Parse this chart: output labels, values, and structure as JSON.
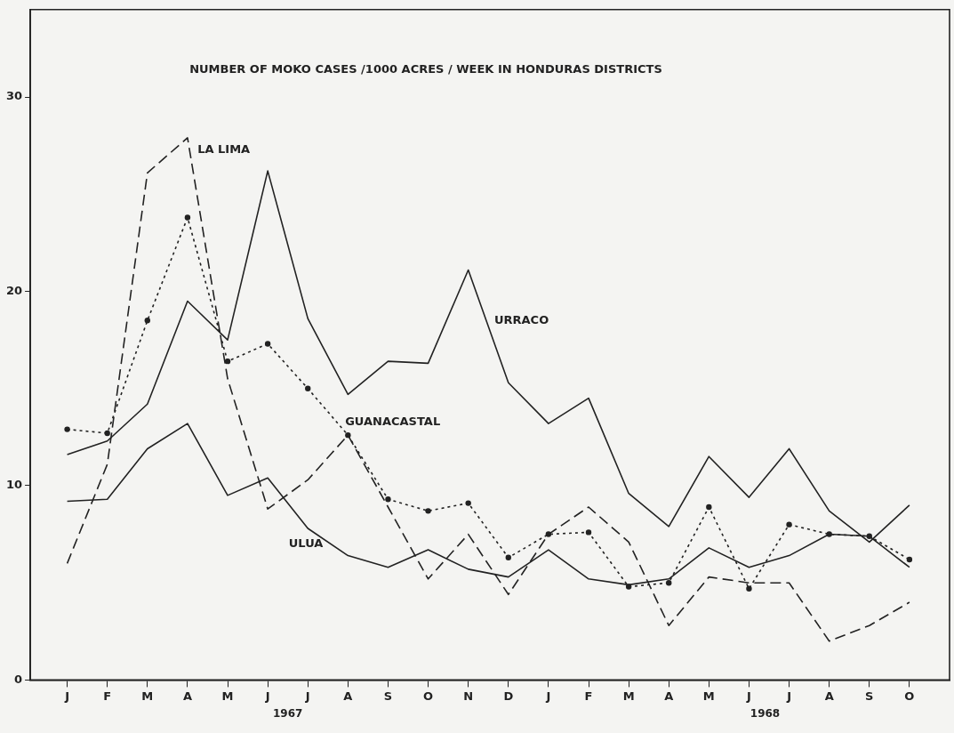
{
  "chart_data": {
    "type": "line",
    "title": "NUMBER OF MOKO CASES /1000 ACRES / WEEK IN HONDURAS DISTRICTS",
    "categories": [
      "J",
      "F",
      "M",
      "A",
      "M",
      "J",
      "J",
      "A",
      "S",
      "O",
      "N",
      "D",
      "J",
      "F",
      "M",
      "A",
      "M",
      "J",
      "J",
      "A",
      "S",
      "O"
    ],
    "ylim": [
      0,
      34.5
    ],
    "yticks": [
      0,
      10,
      20,
      30
    ],
    "grid": false,
    "legend": false,
    "series": [
      {
        "name": "LA LIMA",
        "color": "#222222",
        "line_style": "dashed",
        "marker": "none",
        "values": [
          6.0,
          11.1,
          26.1,
          27.9,
          15.5,
          8.8,
          10.3,
          12.6,
          8.9,
          5.2,
          7.5,
          4.4,
          7.5,
          8.9,
          7.1,
          2.8,
          5.3,
          5.0,
          5.0,
          2.0,
          2.8,
          4.0
        ]
      },
      {
        "name": "URRACO",
        "color": "#222222",
        "line_style": "solid",
        "marker": "none",
        "values": [
          11.6,
          12.3,
          14.2,
          19.5,
          17.5,
          26.2,
          18.6,
          14.7,
          16.4,
          16.3,
          21.1,
          15.3,
          13.2,
          14.5,
          9.6,
          7.9,
          11.5,
          9.4,
          11.9,
          8.7,
          7.1,
          9.0
        ]
      },
      {
        "name": "GUANACASTAL",
        "color": "#222222",
        "line_style": "dotted",
        "marker": "circle",
        "values": [
          12.9,
          12.7,
          18.5,
          23.8,
          16.4,
          17.3,
          15.0,
          12.6,
          9.3,
          8.7,
          9.1,
          6.3,
          7.5,
          7.6,
          4.8,
          5.0,
          8.9,
          4.7,
          8.0,
          7.5,
          7.4,
          6.2
        ]
      },
      {
        "name": "ULUA",
        "color": "#222222",
        "line_style": "solid",
        "marker": "none",
        "values": [
          9.2,
          9.3,
          11.9,
          13.2,
          9.5,
          10.4,
          7.8,
          6.4,
          5.8,
          6.7,
          5.7,
          5.3,
          6.7,
          5.2,
          4.9,
          5.2,
          6.8,
          5.8,
          6.4,
          7.5,
          7.4,
          5.8
        ]
      }
    ],
    "annotations": [
      "1967",
      "1968"
    ]
  }
}
